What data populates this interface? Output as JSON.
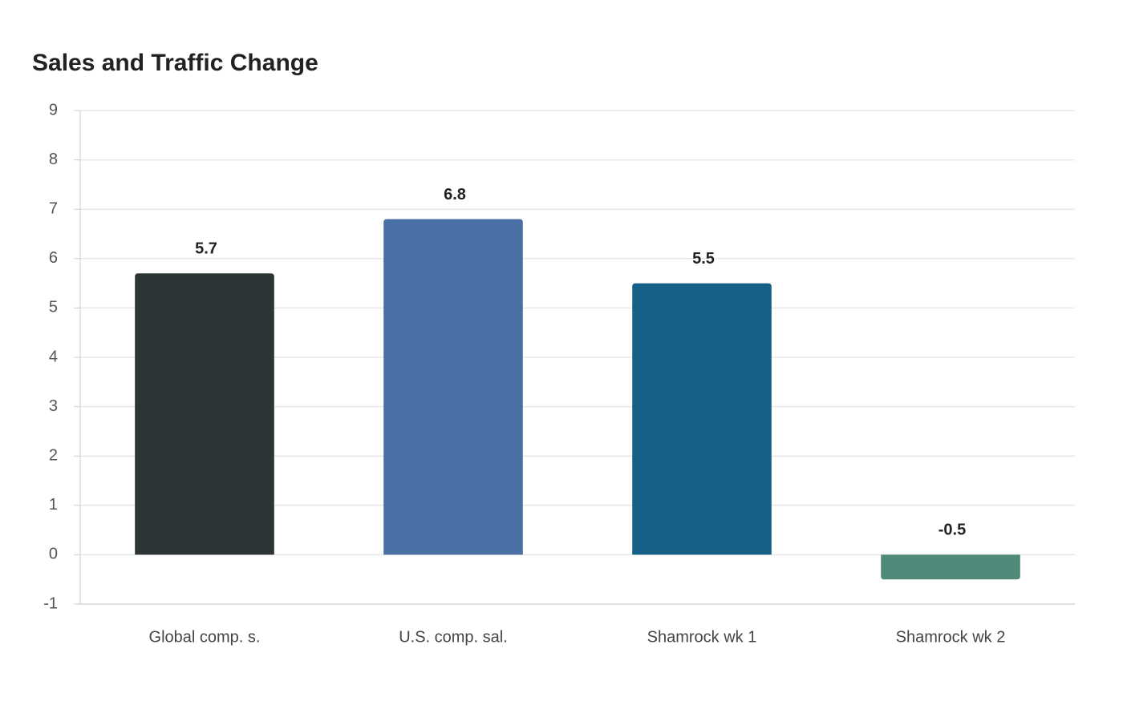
{
  "chart_data": {
    "type": "bar",
    "title": "Sales and Traffic Change",
    "categories": [
      "Global comp. s.",
      "U.S. comp. sal.",
      "Shamrock wk 1",
      "Shamrock wk 2"
    ],
    "values": [
      5.7,
      6.8,
      5.5,
      -0.5
    ],
    "colors": [
      "#2d3436",
      "#4a6fa5",
      "#166088",
      "#4f8a7a"
    ],
    "ylim": [
      -1,
      9
    ],
    "yticks": [
      -1,
      0,
      1,
      2,
      3,
      4,
      5,
      6,
      7,
      8,
      9
    ],
    "grid": true
  }
}
